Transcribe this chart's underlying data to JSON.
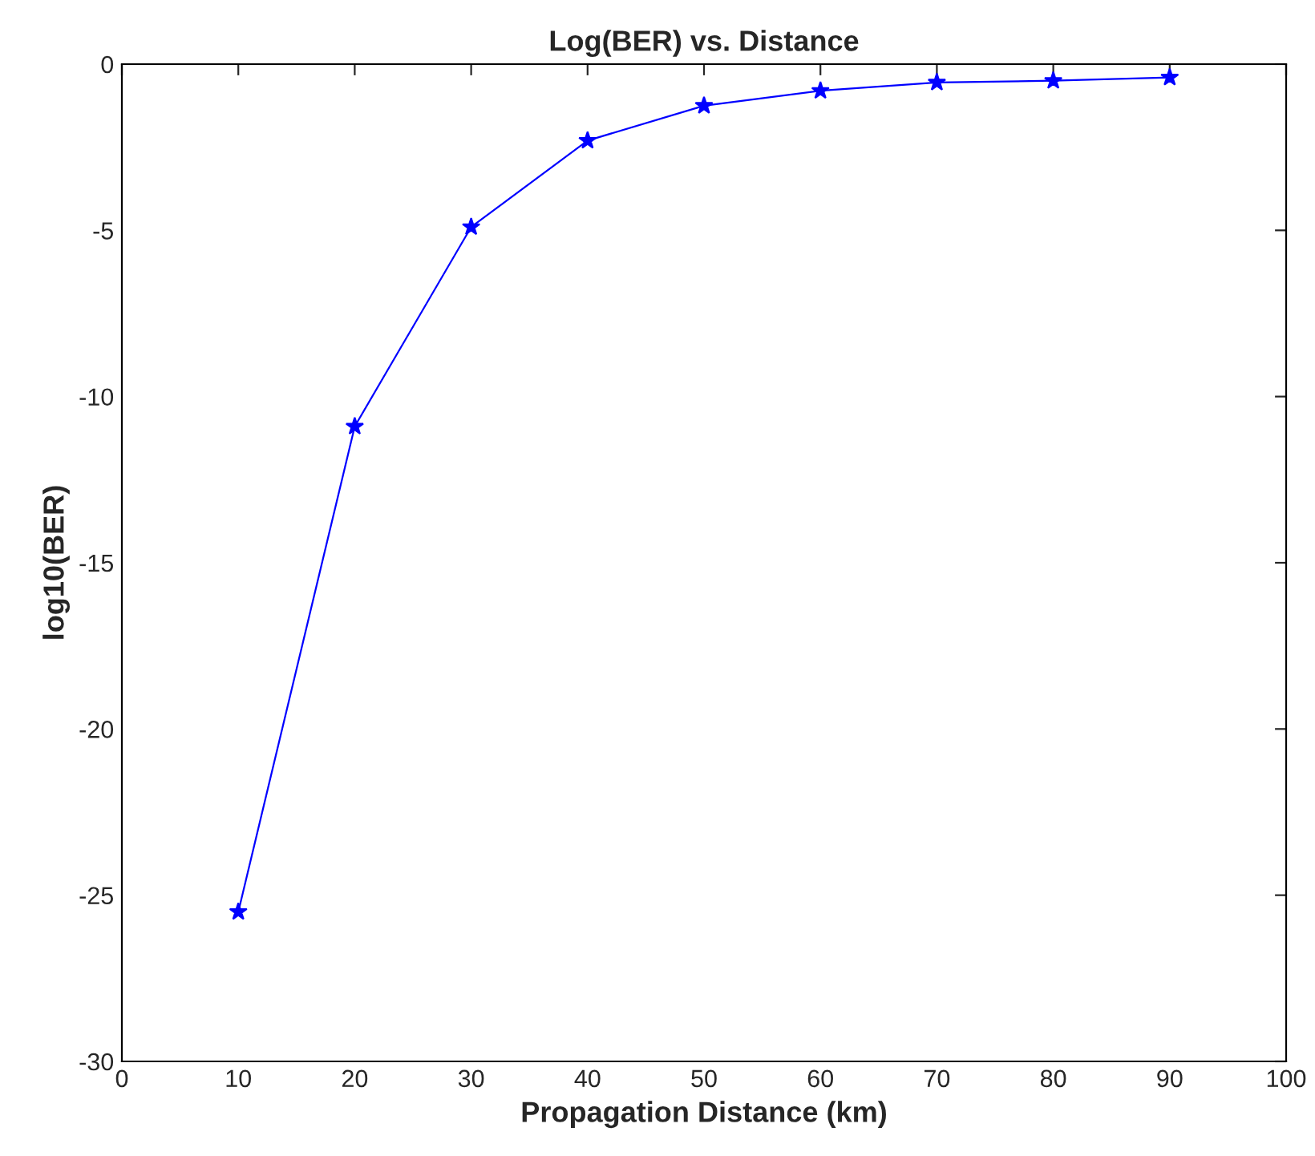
{
  "chart_data": {
    "type": "line",
    "title": "Log(BER) vs. Distance",
    "xlabel": "Propagation Distance (km)",
    "ylabel": "log10(BER)",
    "x": [
      10,
      20,
      30,
      40,
      50,
      60,
      70,
      80,
      90
    ],
    "series": [
      {
        "color": "#0000ff",
        "values": [
          -25.5,
          -10.9,
          -4.9,
          -2.3,
          -1.25,
          -0.8,
          -0.55,
          -0.5,
          -0.4
        ]
      }
    ],
    "xlim": [
      0,
      100
    ],
    "xticks": [
      0,
      10,
      20,
      30,
      40,
      50,
      60,
      70,
      80,
      90,
      100
    ],
    "ylim": [
      -30,
      0
    ],
    "yticks": [
      -30,
      -25,
      -20,
      -15,
      -10,
      -5,
      0
    ],
    "grid": false,
    "legend": false,
    "marker": "star",
    "line_style": "solid"
  }
}
